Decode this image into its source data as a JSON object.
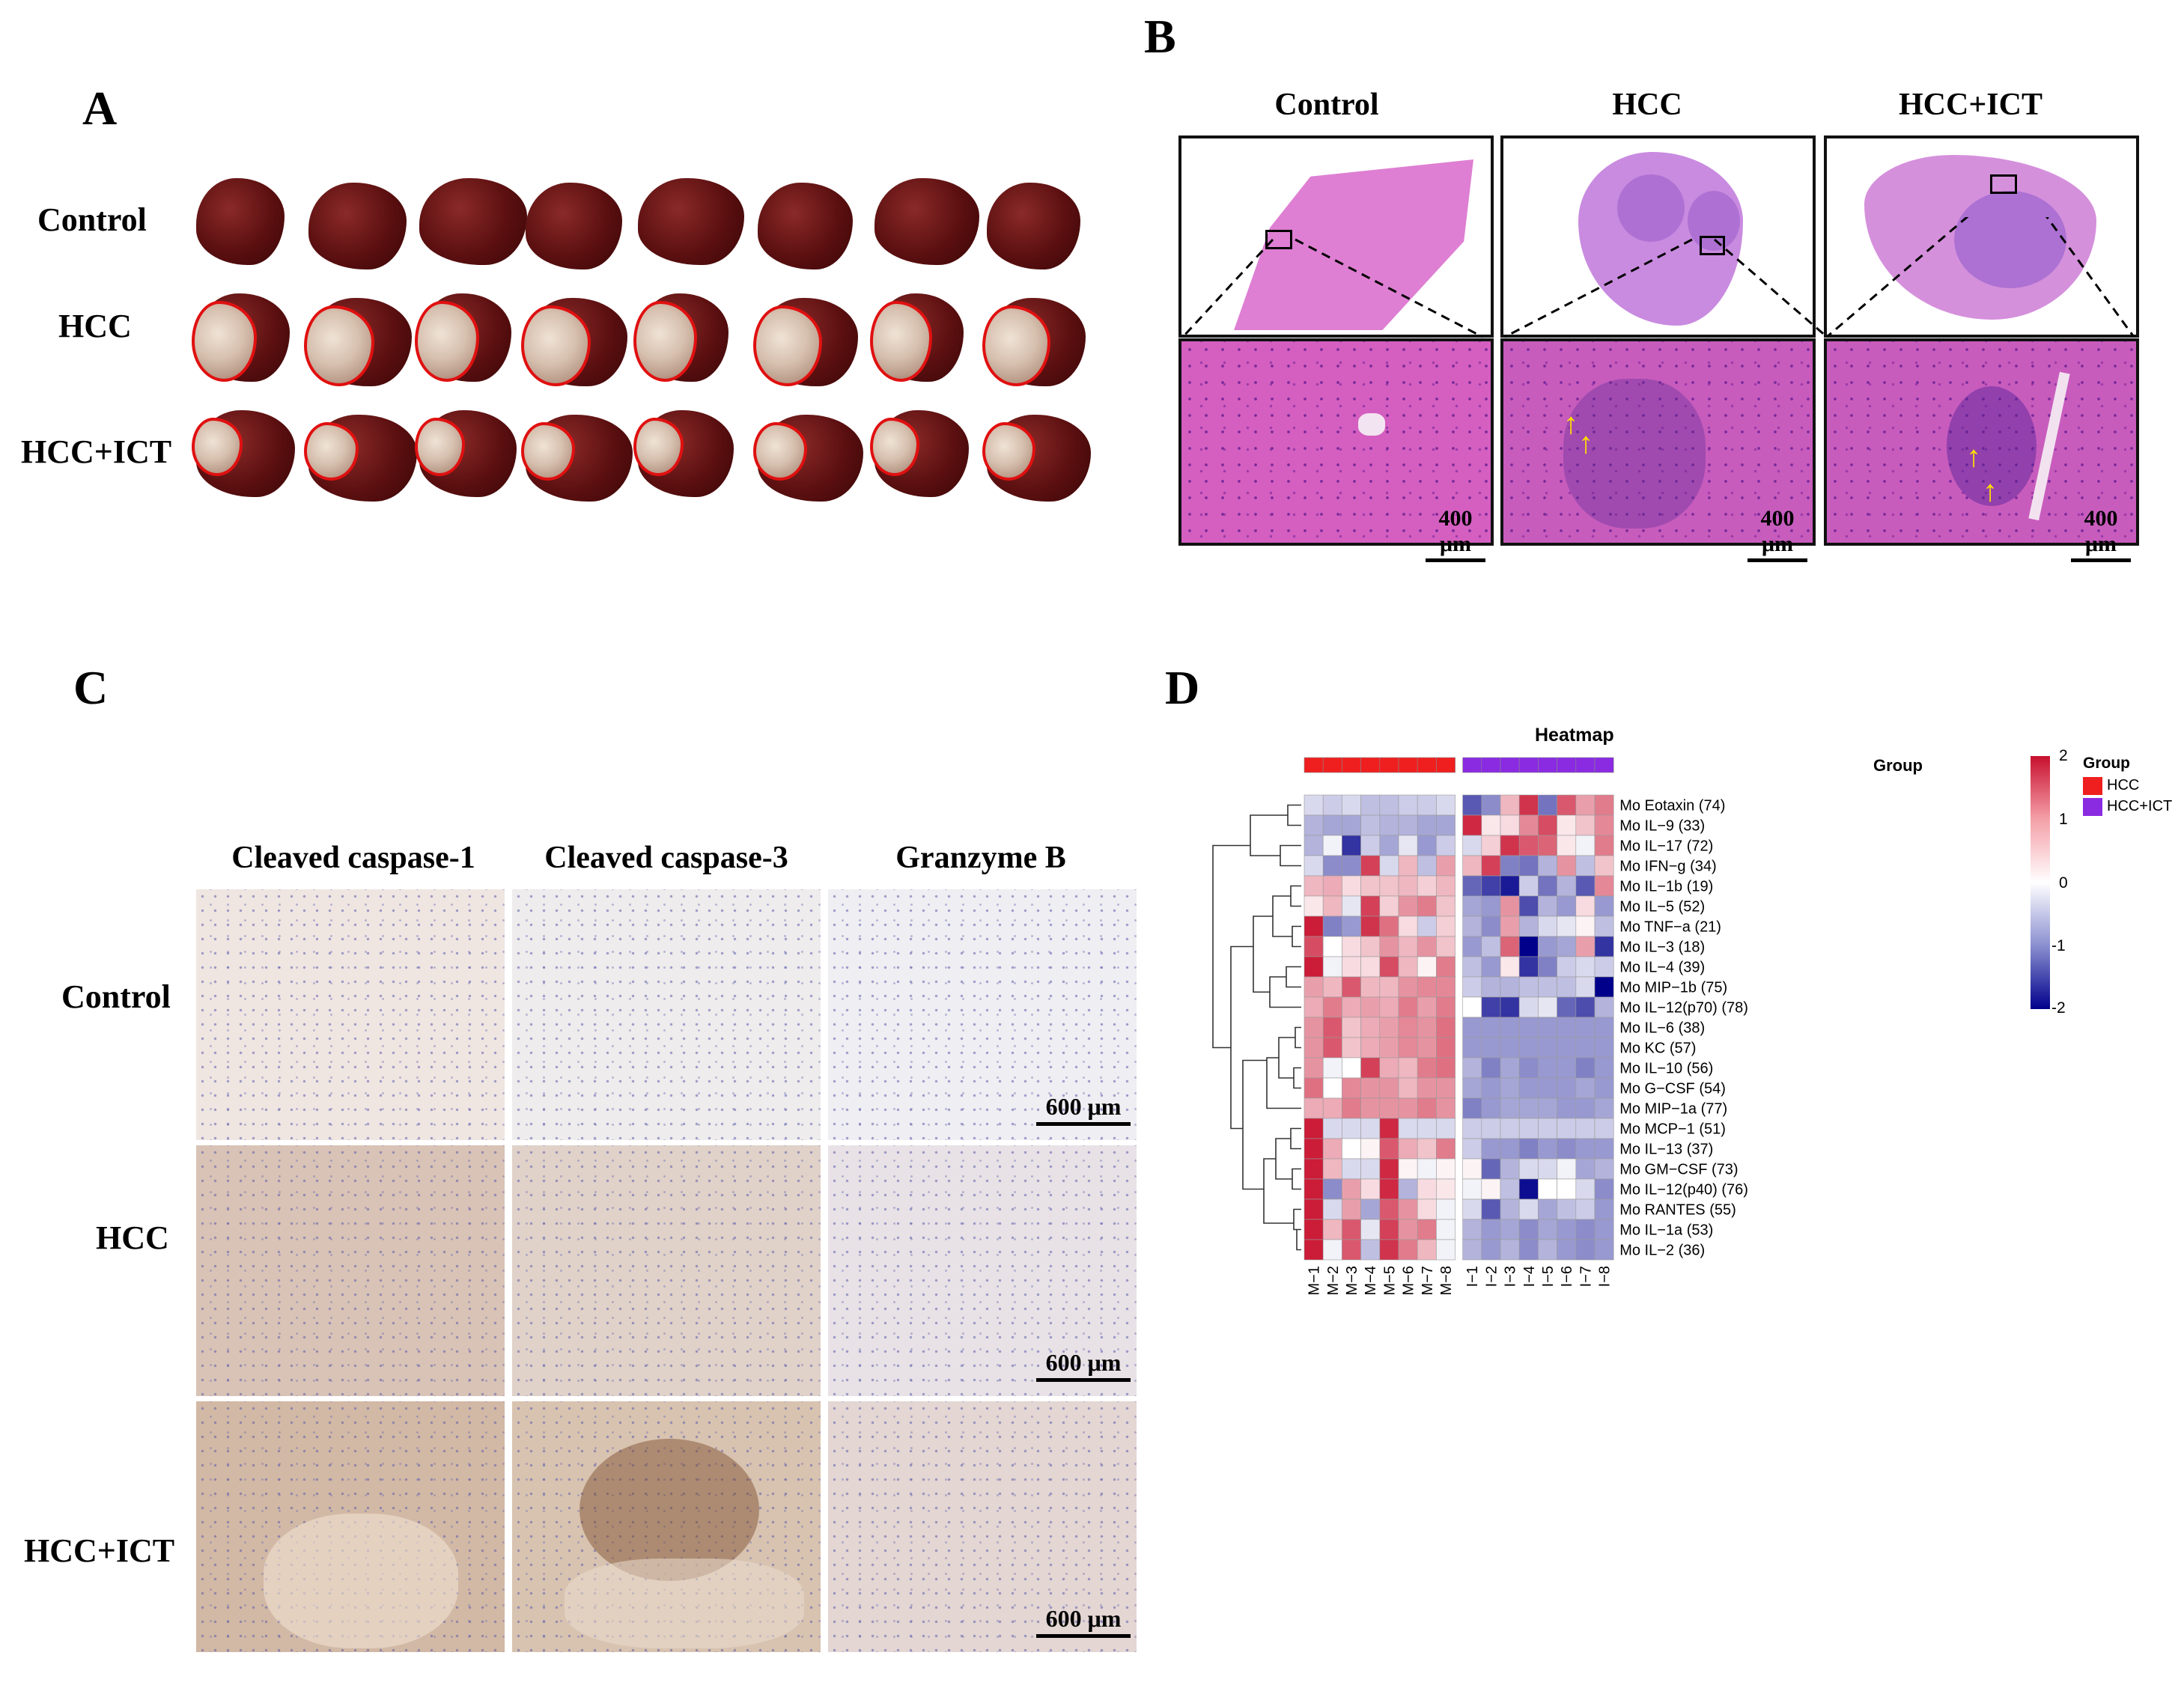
{
  "panels": {
    "A": {
      "letter": "A",
      "rows": [
        "Control",
        "HCC",
        "HCC+ICT"
      ]
    },
    "B": {
      "letter": "B",
      "cols": [
        "Control",
        "HCC",
        "HCC+ICT"
      ],
      "scale": "400 μm"
    },
    "C": {
      "letter": "C",
      "cols": [
        "Cleaved caspase-1",
        "Cleaved caspase-3",
        "Granzyme B"
      ],
      "rows": [
        "Control",
        "HCC",
        "HCC+ICT"
      ],
      "scale": "600 μm"
    },
    "D": {
      "letter": "D"
    }
  },
  "chart_data": {
    "type": "heatmap",
    "title": "Heatmap",
    "group_row_label": "Group",
    "legend": {
      "title": "Group",
      "items": [
        {
          "name": "HCC",
          "color": "#ef1f1f"
        },
        {
          "name": "HCC+ICT",
          "color": "#8a2be2"
        }
      ]
    },
    "color_scale": {
      "min": -2,
      "max": 2,
      "ticks": [
        2,
        1,
        0,
        -1,
        -2
      ],
      "low": "#00008b",
      "mid": "#ffffff",
      "high": "#c8102e"
    },
    "columns": [
      "M−1",
      "M−2",
      "M−3",
      "M−4",
      "M−5",
      "M−6",
      "M−7",
      "M−8",
      "I−1",
      "I−2",
      "I−3",
      "I−4",
      "I−5",
      "I−6",
      "I−7",
      "I−8"
    ],
    "groups": [
      "HCC",
      "HCC",
      "HCC",
      "HCC",
      "HCC",
      "HCC",
      "HCC",
      "HCC",
      "HCC+ICT",
      "HCC+ICT",
      "HCC+ICT",
      "HCC+ICT",
      "HCC+ICT",
      "HCC+ICT",
      "HCC+ICT",
      "HCC+ICT"
    ],
    "rows": [
      "Mo Eotaxin (74)",
      "Mo IL−9 (33)",
      "Mo IL−17 (72)",
      "Mo IFN−g (34)",
      "Mo IL−1b (19)",
      "Mo IL−5 (52)",
      "Mo TNF−a (21)",
      "Mo IL−3 (18)",
      "Mo IL−4 (39)",
      "Mo MIP−1b (75)",
      "Mo IL−12(p70) (78)",
      "Mo IL−6 (38)",
      "Mo KC (57)",
      "Mo IL−10 (56)",
      "Mo G−CSF (54)",
      "Mo MIP−1a (77)",
      "Mo MCP−1 (51)",
      "Mo IL−13 (37)",
      "Mo GM−CSF (73)",
      "Mo IL−12(p40) (76)",
      "Mo RANTES (55)",
      "Mo IL−1a (53)",
      "Mo IL−2 (36)"
    ],
    "values": [
      [
        -0.3,
        -0.4,
        -0.3,
        -0.5,
        -0.5,
        -0.4,
        -0.4,
        -0.3,
        -1.3,
        -0.9,
        0.6,
        1.7,
        -1.1,
        1.4,
        0.8,
        1.1
      ],
      [
        -0.6,
        -0.7,
        -0.7,
        -0.5,
        -0.6,
        -0.6,
        -0.7,
        -0.7,
        1.8,
        0.2,
        0.3,
        1.0,
        1.5,
        0.2,
        0.5,
        1.0
      ],
      [
        -0.6,
        -0.1,
        -1.6,
        -0.4,
        -0.7,
        -0.2,
        -0.8,
        -0.4,
        -0.3,
        0.4,
        1.7,
        1.4,
        1.3,
        0.2,
        -0.1,
        1.1
      ],
      [
        -0.3,
        -0.9,
        -0.9,
        1.6,
        -0.3,
        0.6,
        -0.5,
        0.8,
        0.6,
        1.6,
        -1.0,
        -1.1,
        -0.6,
        0.9,
        -0.5,
        0.5
      ],
      [
        0.6,
        0.7,
        0.3,
        0.5,
        0.5,
        0.6,
        0.4,
        0.6,
        -1.2,
        -1.5,
        -1.8,
        -0.4,
        -1.1,
        -0.6,
        -1.3,
        1.0
      ],
      [
        0.2,
        0.6,
        -0.2,
        1.6,
        0.4,
        0.9,
        1.1,
        0.5,
        -0.7,
        -0.8,
        0.9,
        -1.4,
        -0.6,
        -0.8,
        0.3,
        -0.8
      ],
      [
        1.9,
        -1.0,
        -0.8,
        1.7,
        1.2,
        0.3,
        -0.4,
        0.4,
        -0.6,
        -0.9,
        0.8,
        -0.6,
        -0.3,
        -0.2,
        0.1,
        -0.5
      ],
      [
        1.5,
        0.0,
        0.3,
        0.5,
        0.9,
        0.6,
        0.9,
        0.5,
        -0.8,
        -0.5,
        1.3,
        -2.0,
        -0.8,
        -0.7,
        0.8,
        -1.6
      ],
      [
        1.9,
        -0.1,
        0.3,
        0.3,
        1.5,
        0.6,
        0.1,
        1.1,
        -0.5,
        -0.8,
        0.2,
        -1.6,
        -1.0,
        -0.4,
        -0.3,
        -0.4
      ],
      [
        0.8,
        0.6,
        1.4,
        0.6,
        0.6,
        0.9,
        1.0,
        1.0,
        -0.4,
        -0.6,
        -0.6,
        -0.5,
        -0.5,
        -0.5,
        -0.3,
        -2.2
      ],
      [
        0.7,
        1.1,
        0.7,
        0.8,
        0.7,
        1.1,
        0.8,
        1.1,
        0.0,
        -1.5,
        -1.6,
        -0.3,
        -0.2,
        -1.2,
        -1.4,
        -0.6
      ],
      [
        0.9,
        1.4,
        0.5,
        0.7,
        0.8,
        1.0,
        0.9,
        1.2,
        -0.8,
        -0.8,
        -0.8,
        -0.8,
        -0.8,
        -0.8,
        -0.8,
        -0.8
      ],
      [
        0.9,
        1.4,
        0.5,
        0.7,
        0.8,
        1.0,
        0.9,
        1.2,
        -0.8,
        -0.8,
        -0.8,
        -0.8,
        -0.8,
        -0.8,
        -0.8,
        -0.8
      ],
      [
        0.9,
        -0.1,
        0.0,
        1.6,
        0.7,
        0.6,
        1.1,
        1.2,
        -0.6,
        -1.0,
        -0.7,
        -0.9,
        -0.8,
        -0.8,
        -1.0,
        -0.8
      ],
      [
        1.2,
        0.0,
        1.0,
        0.9,
        0.9,
        0.6,
        0.9,
        0.9,
        -0.7,
        -0.8,
        -0.7,
        -0.8,
        -0.8,
        -0.8,
        -0.7,
        -0.8
      ],
      [
        0.7,
        0.7,
        1.1,
        0.9,
        0.9,
        0.9,
        1.1,
        0.9,
        -1.0,
        -0.8,
        -0.7,
        -0.7,
        -0.7,
        -0.8,
        -0.8,
        -0.7
      ],
      [
        1.9,
        -0.3,
        -0.3,
        -0.3,
        1.8,
        -0.3,
        -0.3,
        -0.3,
        -0.4,
        -0.4,
        -0.4,
        -0.4,
        -0.4,
        -0.4,
        -0.4,
        -0.4
      ],
      [
        1.9,
        0.7,
        0.0,
        0.1,
        1.4,
        0.7,
        0.5,
        1.1,
        -0.4,
        -0.8,
        -0.8,
        -1.0,
        -0.8,
        -0.9,
        -0.8,
        -0.8
      ],
      [
        1.9,
        0.6,
        -0.3,
        -0.3,
        1.8,
        0.1,
        -0.1,
        0.1,
        0.1,
        -1.2,
        -0.6,
        -0.3,
        -0.3,
        -0.1,
        -0.7,
        -0.6
      ],
      [
        1.9,
        -0.9,
        0.8,
        0.3,
        1.8,
        -0.6,
        0.3,
        0.2,
        -0.1,
        0.1,
        -0.5,
        -1.9,
        0.0,
        0.0,
        -0.3,
        -0.9
      ],
      [
        1.9,
        -0.3,
        0.8,
        -0.7,
        1.4,
        0.9,
        0.3,
        -0.1,
        -0.3,
        -1.3,
        -0.6,
        -0.3,
        -0.7,
        -0.5,
        -0.4,
        -0.8
      ],
      [
        1.9,
        0.6,
        1.4,
        -0.2,
        1.6,
        0.9,
        1.1,
        -0.1,
        -0.6,
        -0.8,
        -0.7,
        -0.9,
        -0.7,
        -0.8,
        -0.9,
        -0.8
      ],
      [
        1.9,
        -0.1,
        1.4,
        -0.5,
        1.7,
        1.1,
        0.6,
        -0.1,
        -0.6,
        -0.8,
        -0.6,
        -0.9,
        -0.6,
        -0.8,
        -0.9,
        -0.8
      ]
    ]
  }
}
